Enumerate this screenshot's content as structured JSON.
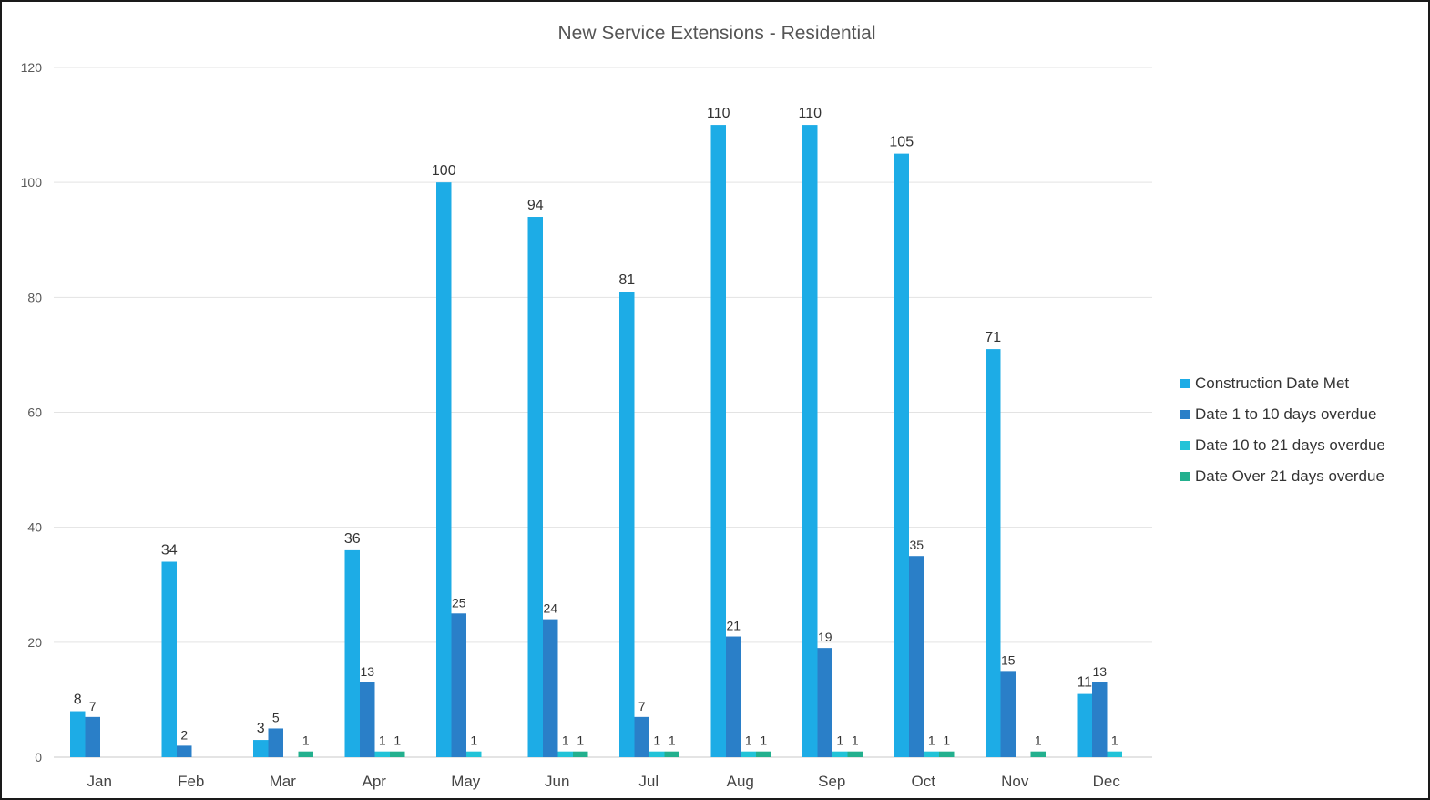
{
  "chart_data": {
    "type": "bar",
    "title": "New Service Extensions - Residential",
    "categories": [
      "Jan",
      "Feb",
      "Mar",
      "Apr",
      "May",
      "Jun",
      "Jul",
      "Aug",
      "Sep",
      "Oct",
      "Nov",
      "Dec"
    ],
    "series": [
      {
        "name": "Construction Date Met",
        "color": "#1DACE6",
        "values": [
          8,
          34,
          3,
          36,
          100,
          94,
          81,
          110,
          110,
          105,
          71,
          11
        ]
      },
      {
        "name": "Date 1 to 10 days overdue",
        "color": "#2A7FC8",
        "values": [
          7,
          2,
          5,
          13,
          25,
          24,
          7,
          21,
          19,
          35,
          15,
          13
        ]
      },
      {
        "name": "Date 10 to 21 days overdue",
        "color": "#22C3D8",
        "values": [
          null,
          null,
          null,
          1,
          1,
          1,
          1,
          1,
          1,
          1,
          null,
          1
        ]
      },
      {
        "name": "Date Over 21 days overdue",
        "color": "#23B08E",
        "values": [
          null,
          null,
          1,
          1,
          null,
          1,
          1,
          1,
          1,
          1,
          1,
          null
        ]
      }
    ],
    "ylim": [
      0,
      120
    ],
    "yticks": [
      0,
      20,
      40,
      60,
      80,
      100,
      120
    ],
    "grid": true,
    "legend_position": "right"
  }
}
